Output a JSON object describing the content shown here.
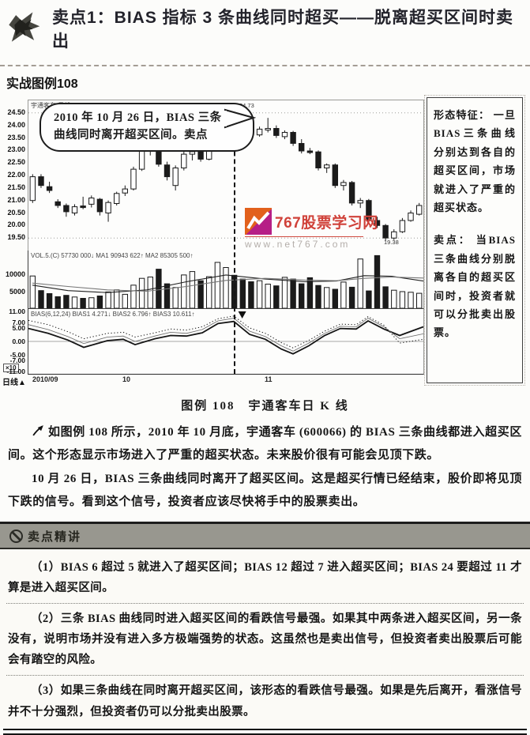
{
  "page": {
    "title": "卖点1：BIAS 指标 3 条曲线同时超买——脱离超买区间时卖出",
    "section_label": "实战图例108",
    "caption": "图例 108　宇通客车日 K 线"
  },
  "chart": {
    "instrument_label": "宇通客车 日线",
    "callout_line1": "2010 年 10 月 26 日，BIAS 三条",
    "callout_line2": "曲线同时离开超买区间。卖点",
    "peak_price_label": "24.73",
    "low_price_label": "19.38",
    "price_axis": [
      "24.50",
      "24.00",
      "23.50",
      "23.00",
      "22.50",
      "22.00",
      "21.50",
      "21.00",
      "20.50",
      "20.00",
      "19.50"
    ],
    "volume_header": "VOL.5.(C) 57730 000↓  MA1 90943 622↑  MA2 85305 500↑",
    "volume_axis": [
      {
        "label": "10000",
        "value": 10000
      },
      {
        "label": "5000",
        "value": 5000
      }
    ],
    "volume_unit": "×10",
    "bias_header": "BIAS(6,12,24)  BIAS1 4.271↓  BIAS2 6.796↑  BIAS3 10.611↑",
    "bias_axis": [
      {
        "label": "11.00",
        "value": 11
      },
      {
        "label": "7.00",
        "value": 7
      },
      {
        "label": "5.00",
        "value": 5
      },
      {
        "label": "0.00",
        "value": 0
      },
      {
        "label": "-5.00",
        "value": -5
      },
      {
        "label": "-7.00",
        "value": -7
      },
      {
        "label": "-11.00",
        "value": -11
      }
    ],
    "period_label": "日线▲",
    "x_ticks": [
      {
        "label": "2010/09",
        "x": 0.012
      },
      {
        "label": "10",
        "x": 0.24
      },
      {
        "label": "11",
        "x": 0.6
      }
    ]
  },
  "watermark": {
    "brand": "767股票学习网",
    "url": "www.net767.com",
    "orange": "#e2611c",
    "magenta": "#b61e86",
    "red": "#d0423a"
  },
  "sidebar": {
    "feature_title": "形态特征：",
    "feature_body": "一旦BIAS三条曲线分别达到各自的超买区间，市场就进入了严重的超买状态。",
    "sell_title": "卖点：",
    "sell_body": "当BIAS三条曲线分别脱离各自的超买区间时，投资者就可以分批卖出股票。"
  },
  "body": {
    "p1": "如图例 108 所示，2010 年 10 月底，宇通客车 (600066) 的 BIAS 三条曲线都进入超买区间。这个形态显示市场进入了严重的超买状态。未来股价很有可能会见顶下跌。",
    "p2": "10 月 26 日，BIAS 三条曲线同时离开了超买区间。这是超买行情已经结束，股价即将见顶下跌的信号。看到这个信号，投资者应该尽快将手中的股票卖出。"
  },
  "highlights": {
    "header": "卖点精讲",
    "items": [
      "（1）BIAS 6 超过 5 就进入了超买区间；BIAS 12 超过 7 进入超买区间；BIAS 24 要超过 11 才算是进入超买区间。",
      "（2）三条 BIAS 曲线同时进入超买区间的看跌信号最强。如果其中两条进入超买区间，另一条没有，说明市场并没有进入多方极端强势的状态。这虽然也是卖出信号，但投资者卖出股票后可能会有踏空的风险。",
      "（3）如果三条曲线在同时离开超买区间，该形态的看跌信号最强。如果是先后离开，看涨信号并不十分强烈，但投资者仍可以分批卖出股票。"
    ]
  },
  "chart_data": {
    "type": "candlestick",
    "title": "宇通客车 日线 (600066)",
    "price_range": [
      19.0,
      25.0
    ],
    "sell_index": 24,
    "candles": [
      [
        21.0,
        22.05,
        20.9,
        21.95
      ],
      [
        21.95,
        22.05,
        21.5,
        21.6
      ],
      [
        21.55,
        21.75,
        21.3,
        21.4
      ],
      [
        20.95,
        21.05,
        20.7,
        20.8
      ],
      [
        20.8,
        20.88,
        20.35,
        20.55
      ],
      [
        20.5,
        20.85,
        20.4,
        20.75
      ],
      [
        20.78,
        21.15,
        20.65,
        20.72
      ],
      [
        20.85,
        21.2,
        20.72,
        21.1
      ],
      [
        21.05,
        21.1,
        20.4,
        20.55
      ],
      [
        20.5,
        21.0,
        20.15,
        20.92
      ],
      [
        20.88,
        21.35,
        20.8,
        21.28
      ],
      [
        21.3,
        21.6,
        21.18,
        21.46
      ],
      [
        21.46,
        22.35,
        21.4,
        22.25
      ],
      [
        22.25,
        23.1,
        22.18,
        23.0
      ],
      [
        23.0,
        23.38,
        22.8,
        23.26
      ],
      [
        23.5,
        23.55,
        22.35,
        22.45
      ],
      [
        22.42,
        22.55,
        21.8,
        21.95
      ],
      [
        21.6,
        22.4,
        21.4,
        22.3
      ],
      [
        22.3,
        22.95,
        22.2,
        22.85
      ],
      [
        22.85,
        23.05,
        22.6,
        22.95
      ],
      [
        22.95,
        23.1,
        22.55,
        22.65
      ],
      [
        22.65,
        23.25,
        22.6,
        23.15
      ],
      [
        23.15,
        24.1,
        23.05,
        24.0
      ],
      [
        24.0,
        24.5,
        23.9,
        24.4
      ],
      [
        24.45,
        24.73,
        24.15,
        24.35
      ],
      [
        24.32,
        24.45,
        23.88,
        23.98
      ],
      [
        23.92,
        24.1,
        23.52,
        23.62
      ],
      [
        23.62,
        23.95,
        23.55,
        23.85
      ],
      [
        23.85,
        24.3,
        23.72,
        23.88
      ],
      [
        23.88,
        24.0,
        23.5,
        23.6
      ],
      [
        23.55,
        23.8,
        23.45,
        23.72
      ],
      [
        23.72,
        23.78,
        23.18,
        23.28
      ],
      [
        23.28,
        23.45,
        22.88,
        22.98
      ],
      [
        22.98,
        23.1,
        22.85,
        22.94
      ],
      [
        22.94,
        23.0,
        22.2,
        22.3
      ],
      [
        22.3,
        22.48,
        22.1,
        22.42
      ],
      [
        22.42,
        22.48,
        21.5,
        21.6
      ],
      [
        21.6,
        21.82,
        21.4,
        21.72
      ],
      [
        21.72,
        21.78,
        20.8,
        20.9
      ],
      [
        20.9,
        21.1,
        20.7,
        21.0
      ],
      [
        21.0,
        21.06,
        20.1,
        20.2
      ],
      [
        20.2,
        20.35,
        19.9,
        20.0
      ],
      [
        20.0,
        20.06,
        19.38,
        19.5
      ],
      [
        19.5,
        19.85,
        19.42,
        19.75
      ],
      [
        19.75,
        20.3,
        19.7,
        20.2
      ],
      [
        20.2,
        20.6,
        20.15,
        20.5
      ],
      [
        20.45,
        20.9,
        20.4,
        20.8
      ]
    ],
    "volume_max": 17000,
    "volumes": [
      9500,
      5200,
      4300,
      3400,
      3800,
      3300,
      2900,
      3100,
      3600,
      4800,
      5400,
      4100,
      6800,
      8800,
      9200,
      11500,
      7200,
      6100,
      9800,
      10800,
      8100,
      9300,
      13500,
      12000,
      9700,
      8600,
      7800,
      8100,
      7100,
      6600,
      9100,
      8600,
      7200,
      9000,
      6700,
      6100,
      5600,
      7700,
      6200,
      14500,
      5100,
      15500,
      6300,
      5300,
      4900,
      4700,
      4400
    ],
    "vol_ma1": [
      [
        0.01,
        6800
      ],
      [
        0.1,
        5200
      ],
      [
        0.2,
        4600
      ],
      [
        0.3,
        5400
      ],
      [
        0.4,
        7800
      ],
      [
        0.5,
        9800
      ],
      [
        0.6,
        8600
      ],
      [
        0.7,
        7800
      ],
      [
        0.78,
        8000
      ],
      [
        0.85,
        9600
      ],
      [
        0.92,
        9400
      ],
      [
        1,
        8000
      ]
    ],
    "vol_ma2": [
      [
        0.01,
        7400
      ],
      [
        0.1,
        6400
      ],
      [
        0.2,
        5400
      ],
      [
        0.3,
        5000
      ],
      [
        0.4,
        6400
      ],
      [
        0.5,
        8200
      ],
      [
        0.6,
        8800
      ],
      [
        0.7,
        8300
      ],
      [
        0.78,
        8100
      ],
      [
        0.85,
        8800
      ],
      [
        0.92,
        9200
      ],
      [
        1,
        8900
      ]
    ],
    "bias_range": [
      -12,
      12
    ],
    "bias_series": [
      {
        "name": "BIAS1",
        "style": "thick",
        "points": [
          [
            0,
            4.8
          ],
          [
            0.05,
            3.0
          ],
          [
            0.1,
            0.5
          ],
          [
            0.14,
            -2.2
          ],
          [
            0.2,
            0.3
          ],
          [
            0.24,
            0.8
          ],
          [
            0.27,
            -1.2
          ],
          [
            0.32,
            1.0
          ],
          [
            0.36,
            2.2
          ],
          [
            0.4,
            2.0
          ],
          [
            0.44,
            3.2
          ],
          [
            0.48,
            6.6
          ],
          [
            0.52,
            7.4
          ],
          [
            0.56,
            2.6
          ],
          [
            0.6,
            0.8
          ],
          [
            0.64,
            -2.8
          ],
          [
            0.67,
            -4.6
          ],
          [
            0.71,
            -1.6
          ],
          [
            0.75,
            2.2
          ],
          [
            0.79,
            4.8
          ],
          [
            0.83,
            4.6
          ],
          [
            0.86,
            7.6
          ],
          [
            0.9,
            4.6
          ],
          [
            0.94,
            2.2
          ],
          [
            1,
            5.4
          ]
        ]
      },
      {
        "name": "BIAS2",
        "style": "thin",
        "points": [
          [
            0,
            6.2
          ],
          [
            0.05,
            4.4
          ],
          [
            0.1,
            1.8
          ],
          [
            0.14,
            -0.8
          ],
          [
            0.2,
            1.6
          ],
          [
            0.24,
            2.0
          ],
          [
            0.27,
            0.0
          ],
          [
            0.32,
            2.0
          ],
          [
            0.36,
            3.4
          ],
          [
            0.4,
            3.0
          ],
          [
            0.44,
            4.4
          ],
          [
            0.48,
            7.6
          ],
          [
            0.52,
            8.6
          ],
          [
            0.56,
            3.8
          ],
          [
            0.6,
            1.8
          ],
          [
            0.64,
            -1.6
          ],
          [
            0.67,
            -3.6
          ],
          [
            0.71,
            -0.6
          ],
          [
            0.75,
            3.0
          ],
          [
            0.79,
            5.6
          ],
          [
            0.83,
            5.4
          ],
          [
            0.86,
            8.6
          ],
          [
            0.9,
            5.4
          ],
          [
            0.94,
            1.0
          ],
          [
            1,
            2.8
          ]
        ]
      },
      {
        "name": "BIAS3",
        "style": "dotted",
        "points": [
          [
            0,
            7.8
          ],
          [
            0.05,
            6.2
          ],
          [
            0.1,
            3.6
          ],
          [
            0.14,
            1.0
          ],
          [
            0.2,
            3.0
          ],
          [
            0.24,
            3.4
          ],
          [
            0.27,
            1.6
          ],
          [
            0.32,
            3.2
          ],
          [
            0.36,
            4.6
          ],
          [
            0.4,
            4.2
          ],
          [
            0.44,
            5.4
          ],
          [
            0.48,
            8.4
          ],
          [
            0.52,
            9.4
          ],
          [
            0.56,
            5.0
          ],
          [
            0.6,
            3.0
          ],
          [
            0.64,
            -0.4
          ],
          [
            0.67,
            -2.4
          ],
          [
            0.71,
            0.4
          ],
          [
            0.75,
            3.8
          ],
          [
            0.79,
            6.4
          ],
          [
            0.83,
            6.2
          ],
          [
            0.86,
            9.2
          ],
          [
            0.9,
            6.0
          ],
          [
            0.94,
            -0.6
          ],
          [
            1,
            0.8
          ]
        ]
      }
    ]
  }
}
